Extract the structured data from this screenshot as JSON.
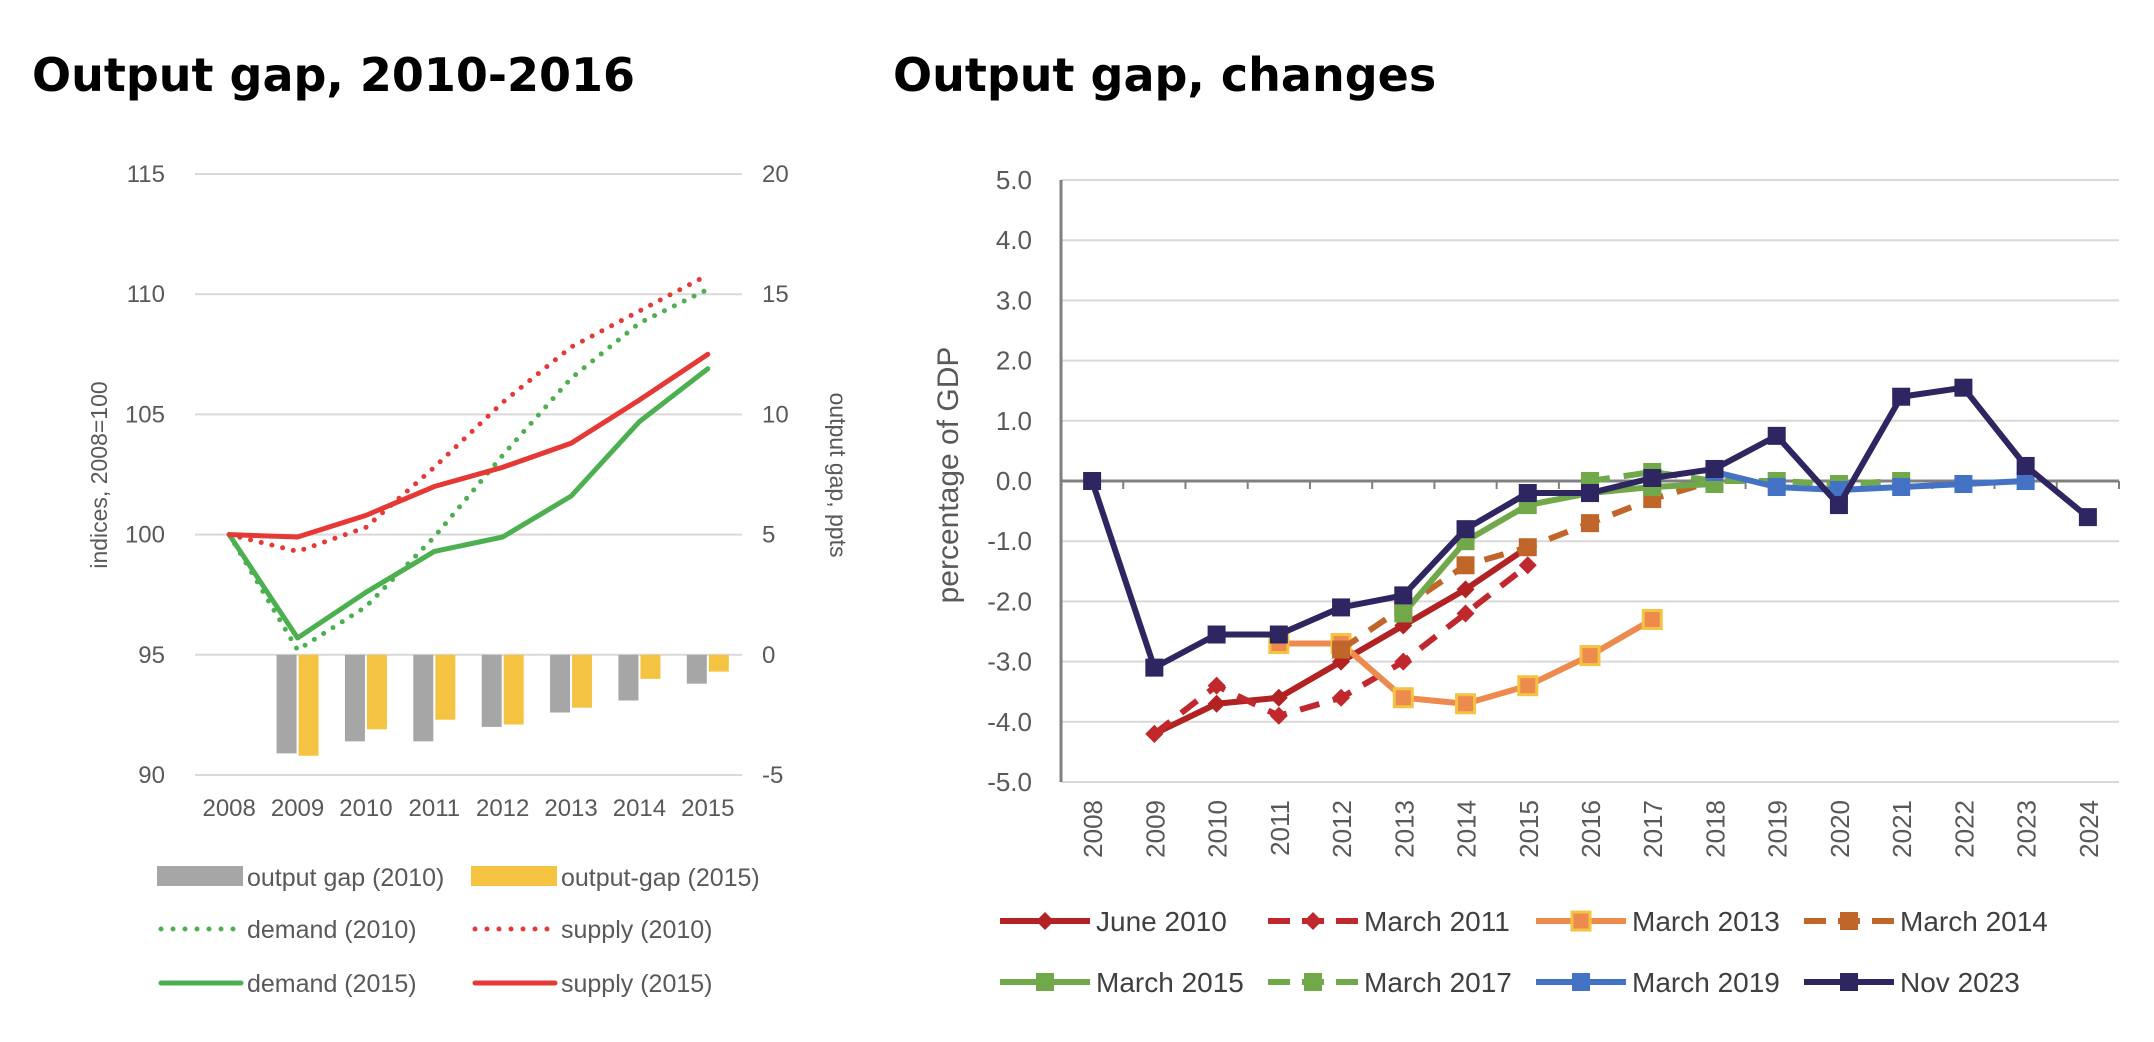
{
  "titles": {
    "left": "Output gap, 2010-2016",
    "right": "Output gap, changes"
  },
  "chart_data": [
    {
      "type": "line",
      "title": "Output gap, 2010-2016",
      "categories": [
        "2008",
        "2009",
        "2010",
        "2011",
        "2012",
        "2013",
        "2014",
        "2015"
      ],
      "ylabel": "indices, 2008=100",
      "y2label": "output gap, ppts",
      "ylim": [
        90,
        115
      ],
      "y2lim": [
        -5,
        20
      ],
      "yticks": [
        "90",
        "95",
        "100",
        "105",
        "110",
        "115"
      ],
      "y2ticks": [
        "-5",
        "0",
        "5",
        "10",
        "15",
        "20"
      ],
      "grid": true,
      "legend_position": "bottom",
      "bars": [
        {
          "name": "output gap (2010)",
          "color": "#a6a6a6",
          "values": [
            null,
            -4.1,
            -3.6,
            -3.6,
            -3.0,
            -2.4,
            -1.9,
            -1.2
          ]
        },
        {
          "name": "output-gap (2015)",
          "color": "#f5c342",
          "values": [
            null,
            -4.2,
            -3.1,
            -2.7,
            -2.9,
            -2.2,
            -1.0,
            -0.7
          ]
        }
      ],
      "series": [
        {
          "name": "demand (2010)",
          "color": "#4caf50",
          "style": "dotted",
          "values": [
            100,
            95.2,
            97.0,
            99.9,
            103.3,
            106.5,
            108.8,
            110.2
          ]
        },
        {
          "name": "supply (2010)",
          "color": "#e53935",
          "style": "dotted",
          "values": [
            100,
            99.3,
            100.3,
            102.8,
            105.5,
            107.8,
            109.3,
            110.8
          ]
        },
        {
          "name": "demand (2015)",
          "color": "#4caf50",
          "style": "solid",
          "values": [
            100,
            95.7,
            97.6,
            99.3,
            99.9,
            101.6,
            104.7,
            106.9
          ]
        },
        {
          "name": "supply (2015)",
          "color": "#e53935",
          "style": "solid",
          "values": [
            100,
            99.9,
            100.8,
            102.0,
            102.8,
            103.8,
            105.6,
            107.5
          ]
        }
      ]
    },
    {
      "type": "line",
      "title": "Output gap, changes",
      "categories": [
        "2008",
        "2009",
        "2010",
        "2011",
        "2012",
        "2013",
        "2014",
        "2015",
        "2016",
        "2017",
        "2018",
        "2019",
        "2020",
        "2021",
        "2022",
        "2023",
        "2024"
      ],
      "ylabel": "percentage of GDP",
      "ylim": [
        -5.0,
        5.0
      ],
      "yticks": [
        "5.0",
        "4.0",
        "3.0",
        "2.0",
        "1.0",
        "0.0",
        "-1.0",
        "-2.0",
        "-3.0",
        "-4.0",
        "-5.0"
      ],
      "grid": true,
      "legend_position": "bottom",
      "series": [
        {
          "name": "June 2010",
          "color": "#b22222",
          "style": "solid",
          "marker": "diamond",
          "values": [
            null,
            -4.2,
            -3.7,
            -3.6,
            -3.0,
            -2.4,
            -1.8,
            -1.1,
            null,
            null,
            null,
            null,
            null,
            null,
            null,
            null,
            null
          ]
        },
        {
          "name": "March 2011",
          "color": "#c0282d",
          "style": "dashed",
          "marker": "diamond",
          "values": [
            null,
            -4.2,
            -3.4,
            -3.9,
            -3.6,
            -3.0,
            -2.2,
            -1.4,
            null,
            null,
            null,
            null,
            null,
            null,
            null,
            null,
            null
          ]
        },
        {
          "name": "March 2013",
          "color": "#ed8b4f",
          "style": "solid",
          "marker": "square-open",
          "values": [
            null,
            null,
            null,
            -2.7,
            -2.7,
            -3.6,
            -3.7,
            -3.4,
            -2.9,
            -2.3,
            null,
            null,
            null,
            null,
            null,
            null,
            null
          ]
        },
        {
          "name": "March 2014",
          "color": "#c0662b",
          "style": "dashed",
          "marker": "square",
          "values": [
            null,
            null,
            null,
            null,
            -2.8,
            -2.1,
            -1.4,
            -1.1,
            -0.7,
            -0.3,
            0.0,
            null,
            null,
            null,
            null,
            null,
            null
          ]
        },
        {
          "name": "March 2015",
          "color": "#70a84a",
          "style": "solid",
          "marker": "square",
          "values": [
            null,
            null,
            null,
            null,
            null,
            -2.2,
            -1.0,
            -0.4,
            -0.2,
            -0.1,
            -0.05,
            null,
            null,
            null,
            null,
            null,
            null
          ]
        },
        {
          "name": "March 2017",
          "color": "#70a84a",
          "style": "dashed",
          "marker": "square",
          "values": [
            null,
            null,
            null,
            null,
            null,
            null,
            null,
            null,
            0.0,
            0.15,
            0.0,
            0.0,
            -0.05,
            0.0,
            null,
            null,
            null
          ]
        },
        {
          "name": "March 2019",
          "color": "#4472c4",
          "style": "solid",
          "marker": "square",
          "values": [
            null,
            null,
            null,
            null,
            null,
            null,
            null,
            null,
            null,
            null,
            0.15,
            -0.1,
            -0.15,
            -0.1,
            -0.05,
            0.0,
            null
          ]
        },
        {
          "name": "Nov 2023",
          "color": "#2e2660",
          "style": "solid",
          "marker": "square",
          "values": [
            0.0,
            -3.1,
            -2.55,
            -2.55,
            -2.1,
            -1.9,
            -0.8,
            -0.2,
            -0.2,
            0.05,
            0.2,
            0.75,
            -0.4,
            1.4,
            1.55,
            0.25,
            -0.6
          ]
        }
      ]
    }
  ]
}
